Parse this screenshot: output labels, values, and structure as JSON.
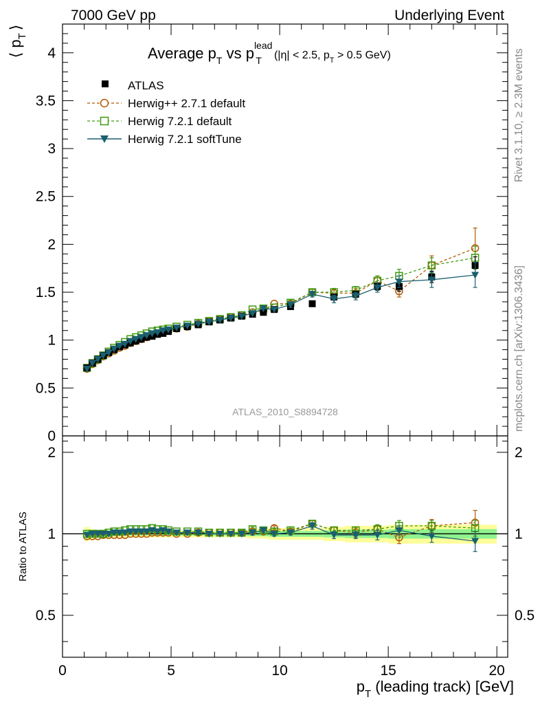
{
  "header": {
    "left": "7000 GeV pp",
    "right": "Underlying Event"
  },
  "side_labels": {
    "rivet": "Rivet 3.1.10, ≥ 2.3M events",
    "mcplots": "mcplots.cern.ch [arXiv:1306.3436]"
  },
  "colors": {
    "atlas": "#000000",
    "herwigpp": "#b35900",
    "herwig721": "#3e9a10",
    "softtune": "#1a5f70",
    "band_yellow": "#fdfd9a",
    "band_green": "#8ef28e"
  },
  "chart_data": [
    {
      "type": "scatter",
      "title": "Average p_T vs p_T^lead (|η| < 2.5, p_T > 0.5 GeV)",
      "title_parts": {
        "main": "Average p",
        "sub1": "T",
        "vs": " vs p",
        "sup": "lead",
        "sub2": "T",
        "cut1": "(|η| < 2.5, p",
        "cut_sub": "T",
        "cut2": " > 0.5 GeV)"
      },
      "ylabel": "⟨ p_T ⟩",
      "ylabel_parts": {
        "open": "⟨ p",
        "sub": "T",
        "close": "⟩"
      },
      "xlim": [
        0,
        20.5
      ],
      "ylim": [
        0,
        4.3
      ],
      "yticks": [
        "0",
        "0.5",
        "1",
        "1.5",
        "2",
        "2.5",
        "3",
        "3.5",
        "4"
      ],
      "xticks": [
        "0",
        "5",
        "10",
        "15",
        "20"
      ],
      "watermark": "ATLAS_2010_S8894728",
      "legend_placement": "top-left",
      "x": [
        1.125,
        1.375,
        1.625,
        1.875,
        2.125,
        2.375,
        2.625,
        2.875,
        3.125,
        3.375,
        3.625,
        3.875,
        4.125,
        4.375,
        4.625,
        4.875,
        5.25,
        5.75,
        6.25,
        6.75,
        7.25,
        7.75,
        8.25,
        8.75,
        9.25,
        9.75,
        10.5,
        11.5,
        12.5,
        13.5,
        14.5,
        15.5,
        17.0,
        19.0
      ],
      "series": [
        {
          "name": "ATLAS",
          "style": "atlas",
          "values": [
            0.71,
            0.76,
            0.8,
            0.84,
            0.87,
            0.9,
            0.93,
            0.95,
            0.97,
            0.99,
            1.01,
            1.03,
            1.04,
            1.06,
            1.07,
            1.09,
            1.12,
            1.14,
            1.16,
            1.19,
            1.21,
            1.23,
            1.25,
            1.27,
            1.29,
            1.32,
            1.35,
            1.38,
            1.45,
            1.48,
            1.56,
            1.56,
            1.66,
            1.78
          ],
          "errors": [
            0.01,
            0.01,
            0.01,
            0.01,
            0.01,
            0.01,
            0.01,
            0.01,
            0.01,
            0.01,
            0.01,
            0.01,
            0.01,
            0.01,
            0.01,
            0.01,
            0.01,
            0.01,
            0.01,
            0.01,
            0.01,
            0.01,
            0.01,
            0.02,
            0.02,
            0.02,
            0.02,
            0.02,
            0.03,
            0.03,
            0.04,
            0.05,
            0.06,
            0.09
          ]
        },
        {
          "name": "Herwig++ 2.7.1 default",
          "style": "herwigpp",
          "values": [
            0.7,
            0.75,
            0.79,
            0.83,
            0.86,
            0.89,
            0.92,
            0.94,
            0.97,
            0.99,
            1.01,
            1.03,
            1.05,
            1.07,
            1.08,
            1.1,
            1.12,
            1.14,
            1.17,
            1.2,
            1.22,
            1.24,
            1.26,
            1.29,
            1.31,
            1.38,
            1.38,
            1.5,
            1.49,
            1.49,
            1.62,
            1.51,
            1.78,
            1.96
          ],
          "errors": [
            0.01,
            0.01,
            0.01,
            0.01,
            0.01,
            0.01,
            0.01,
            0.01,
            0.01,
            0.01,
            0.01,
            0.01,
            0.01,
            0.01,
            0.01,
            0.01,
            0.01,
            0.01,
            0.01,
            0.01,
            0.01,
            0.01,
            0.02,
            0.02,
            0.02,
            0.02,
            0.03,
            0.03,
            0.04,
            0.05,
            0.05,
            0.06,
            0.1,
            0.21
          ]
        },
        {
          "name": "Herwig 7.2.1 default",
          "style": "herwig721",
          "values": [
            0.71,
            0.76,
            0.8,
            0.84,
            0.88,
            0.92,
            0.95,
            0.98,
            1.01,
            1.03,
            1.05,
            1.07,
            1.09,
            1.1,
            1.11,
            1.12,
            1.14,
            1.16,
            1.18,
            1.2,
            1.22,
            1.24,
            1.26,
            1.32,
            1.33,
            1.34,
            1.39,
            1.5,
            1.5,
            1.52,
            1.62,
            1.67,
            1.78,
            1.86
          ],
          "errors": [
            0.01,
            0.01,
            0.01,
            0.01,
            0.01,
            0.01,
            0.01,
            0.01,
            0.01,
            0.01,
            0.01,
            0.01,
            0.01,
            0.01,
            0.01,
            0.01,
            0.01,
            0.01,
            0.01,
            0.01,
            0.01,
            0.01,
            0.02,
            0.02,
            0.02,
            0.02,
            0.03,
            0.03,
            0.04,
            0.04,
            0.05,
            0.07,
            0.08,
            0.12
          ]
        },
        {
          "name": "Herwig 7.2.1 softTune",
          "style": "softtune",
          "values": [
            0.7,
            0.76,
            0.8,
            0.84,
            0.87,
            0.91,
            0.94,
            0.96,
            0.99,
            1.01,
            1.03,
            1.05,
            1.07,
            1.08,
            1.1,
            1.11,
            1.13,
            1.15,
            1.17,
            1.19,
            1.21,
            1.23,
            1.25,
            1.28,
            1.33,
            1.32,
            1.37,
            1.48,
            1.43,
            1.46,
            1.55,
            1.61,
            1.63,
            1.68
          ],
          "errors": [
            0.01,
            0.01,
            0.01,
            0.01,
            0.01,
            0.01,
            0.01,
            0.01,
            0.01,
            0.01,
            0.01,
            0.01,
            0.01,
            0.01,
            0.01,
            0.01,
            0.01,
            0.01,
            0.01,
            0.01,
            0.01,
            0.01,
            0.02,
            0.02,
            0.02,
            0.02,
            0.03,
            0.03,
            0.04,
            0.04,
            0.05,
            0.06,
            0.08,
            0.13
          ]
        }
      ]
    },
    {
      "type": "scatter",
      "ylabel": "Ratio to ATLAS",
      "xlabel": "p_T (leading track) [GeV]",
      "xlabel_parts": {
        "pre": "p",
        "sub": "T",
        "post": " (leading track) [GeV]"
      },
      "xlim": [
        0,
        20.5
      ],
      "ylim": [
        0.35,
        2.3
      ],
      "yticks": [
        "0.5",
        "1",
        "2"
      ],
      "xticks": [
        "0",
        "5",
        "10",
        "15",
        "20"
      ],
      "band_x": [
        1.0,
        1.25,
        1.5,
        1.75,
        2.0,
        2.25,
        2.5,
        2.75,
        3.0,
        3.25,
        3.5,
        3.75,
        4.0,
        4.25,
        4.5,
        4.75,
        5.0,
        5.5,
        6.0,
        6.5,
        7.0,
        7.5,
        8.0,
        8.5,
        9.0,
        9.5,
        10.0,
        11.0,
        12.0,
        13.0,
        14.0,
        15.0,
        16.0,
        18.0,
        20.0
      ],
      "band_yellow_halfwidth": [
        0.06,
        0.04,
        0.03,
        0.03,
        0.03,
        0.03,
        0.03,
        0.03,
        0.03,
        0.03,
        0.03,
        0.03,
        0.03,
        0.03,
        0.03,
        0.03,
        0.03,
        0.03,
        0.03,
        0.03,
        0.03,
        0.03,
        0.03,
        0.04,
        0.04,
        0.05,
        0.05,
        0.05,
        0.06,
        0.07,
        0.07,
        0.08,
        0.08,
        0.08
      ],
      "band_green_halfwidth": [
        0.03,
        0.02,
        0.015,
        0.015,
        0.015,
        0.015,
        0.015,
        0.015,
        0.015,
        0.015,
        0.015,
        0.015,
        0.015,
        0.015,
        0.015,
        0.015,
        0.015,
        0.015,
        0.015,
        0.015,
        0.015,
        0.015,
        0.015,
        0.02,
        0.02,
        0.025,
        0.025,
        0.025,
        0.03,
        0.035,
        0.035,
        0.04,
        0.04,
        0.04
      ],
      "series": [
        {
          "name": "Herwig++ 2.7.1 default",
          "style": "herwigpp",
          "values": [
            0.98,
            0.98,
            0.98,
            0.99,
            0.99,
            0.99,
            0.99,
            0.99,
            1.0,
            1.0,
            1.0,
            1.0,
            1.01,
            1.01,
            1.01,
            1.01,
            1.0,
            1.0,
            1.01,
            1.01,
            1.01,
            1.01,
            1.01,
            1.02,
            1.02,
            1.05,
            1.02,
            1.09,
            1.03,
            1.01,
            1.04,
            0.97,
            1.07,
            1.1
          ],
          "errors": [
            0.01,
            0.01,
            0.01,
            0.01,
            0.01,
            0.01,
            0.01,
            0.01,
            0.01,
            0.01,
            0.01,
            0.01,
            0.01,
            0.01,
            0.01,
            0.01,
            0.01,
            0.01,
            0.01,
            0.01,
            0.01,
            0.01,
            0.02,
            0.02,
            0.02,
            0.02,
            0.02,
            0.03,
            0.03,
            0.04,
            0.04,
            0.05,
            0.06,
            0.12
          ]
        },
        {
          "name": "Herwig 7.2.1 default",
          "style": "herwig721",
          "values": [
            1.0,
            1.0,
            1.0,
            1.0,
            1.01,
            1.02,
            1.02,
            1.03,
            1.04,
            1.04,
            1.04,
            1.04,
            1.05,
            1.04,
            1.04,
            1.03,
            1.02,
            1.02,
            1.02,
            1.01,
            1.01,
            1.01,
            1.01,
            1.04,
            1.03,
            1.02,
            1.03,
            1.09,
            1.03,
            1.03,
            1.04,
            1.07,
            1.07,
            1.05
          ],
          "errors": [
            0.01,
            0.01,
            0.01,
            0.01,
            0.01,
            0.01,
            0.01,
            0.01,
            0.01,
            0.01,
            0.01,
            0.01,
            0.01,
            0.01,
            0.01,
            0.01,
            0.01,
            0.01,
            0.01,
            0.01,
            0.01,
            0.01,
            0.02,
            0.02,
            0.02,
            0.02,
            0.02,
            0.03,
            0.03,
            0.03,
            0.04,
            0.05,
            0.05,
            0.07
          ]
        },
        {
          "name": "Herwig 7.2.1 softTune",
          "style": "softtune",
          "values": [
            0.99,
            1.0,
            1.0,
            1.0,
            1.0,
            1.01,
            1.01,
            1.01,
            1.02,
            1.02,
            1.02,
            1.02,
            1.03,
            1.02,
            1.03,
            1.02,
            1.01,
            1.01,
            1.01,
            1.0,
            1.0,
            1.0,
            1.0,
            1.01,
            1.03,
            1.0,
            1.01,
            1.07,
            0.99,
            0.99,
            0.99,
            1.03,
            0.98,
            0.94
          ],
          "errors": [
            0.01,
            0.01,
            0.01,
            0.01,
            0.01,
            0.01,
            0.01,
            0.01,
            0.01,
            0.01,
            0.01,
            0.01,
            0.01,
            0.01,
            0.01,
            0.01,
            0.01,
            0.01,
            0.01,
            0.01,
            0.01,
            0.01,
            0.02,
            0.02,
            0.02,
            0.02,
            0.02,
            0.03,
            0.03,
            0.03,
            0.04,
            0.04,
            0.05,
            0.08
          ]
        }
      ]
    }
  ]
}
